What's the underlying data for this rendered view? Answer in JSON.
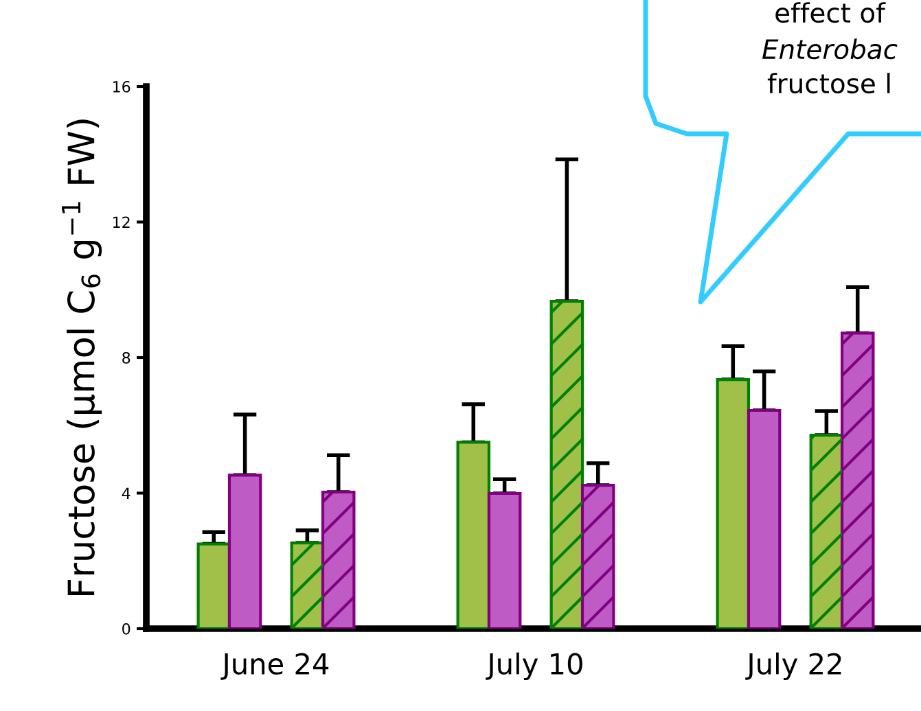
{
  "chart_data": {
    "type": "bar",
    "ylabel": "Fructose (μmol C$_{6}$ g$^{−1}$ FW)",
    "categories": [
      "June 24",
      "July 10",
      "July 22"
    ],
    "series": [
      {
        "color": "#a0c04a",
        "values": [
          2.5,
          5.5,
          7.35
        ],
        "errors": [
          [
            2.5,
            2.85
          ],
          [
            5.5,
            6.62
          ],
          [
            7.35,
            8.34
          ]
        ]
      },
      {
        "color": "#bf5bc4",
        "values": [
          4.53,
          3.99,
          6.44
        ],
        "errors": [
          [
            4.53,
            6.32
          ],
          [
            3.99,
            4.41
          ],
          [
            6.44,
            7.59
          ]
        ]
      },
      {
        "color": "#a0c04a",
        "values": [
          2.53,
          9.66,
          5.71
        ],
        "errors": [
          [
            2.53,
            2.9
          ],
          [
            9.66,
            13.85
          ],
          [
            5.71,
            6.42
          ]
        ]
      },
      {
        "color": "#bf5bc4",
        "values": [
          4.03,
          4.23,
          8.72
        ],
        "errors": [
          [
            4.03,
            5.12
          ],
          [
            4.23,
            4.88
          ],
          [
            8.72,
            10.08
          ]
        ]
      }
    ],
    "ylim": [
      0,
      16
    ],
    "yticks": [
      0,
      4,
      8,
      12,
      16
    ],
    "grid": false,
    "legend": false,
    "annotations": [
      "effect of",
      "Enterobac",
      "fructose l"
    ]
  }
}
